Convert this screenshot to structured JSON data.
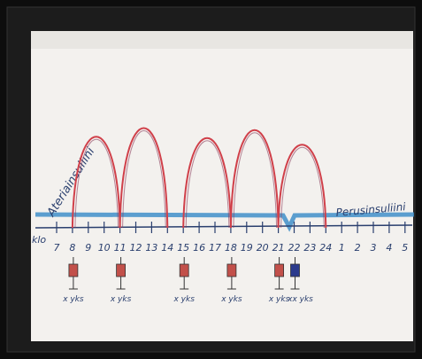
{
  "labels": {
    "meal_insulin": "Ateriainsuliini",
    "basal_insulin": "Perusinsuliini",
    "clock": "klo"
  },
  "hours": [
    "7",
    "8",
    "9",
    "10",
    "11",
    "12",
    "13",
    "14",
    "15",
    "16",
    "17",
    "18",
    "19",
    "20",
    "21",
    "22",
    "23",
    "24",
    "1",
    "2",
    "3",
    "4",
    "5"
  ],
  "doses": [
    "x yks",
    "x yks",
    "x yks",
    "x yks",
    "x yks",
    "xx yks"
  ]
}
